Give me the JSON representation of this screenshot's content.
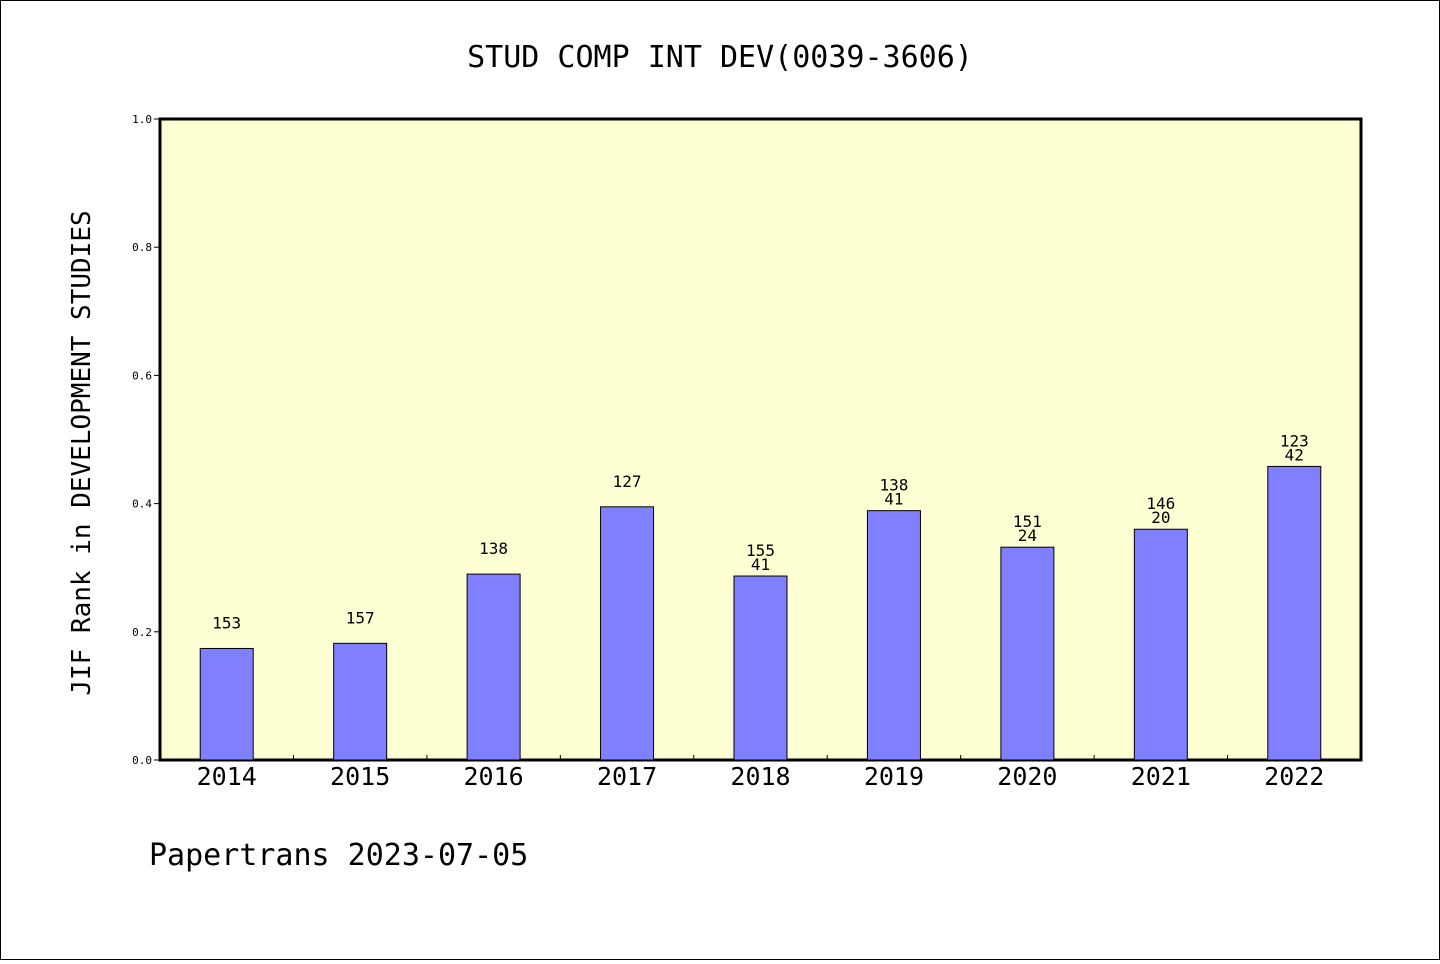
{
  "chart_data": {
    "type": "bar",
    "title": "STUD COMP INT DEV(0039-3606)",
    "xlabel": "",
    "ylabel": "JIF Rank in DEVELOPMENT STUDIES",
    "ylim": [
      0,
      1
    ],
    "yticks": [
      "0.0",
      "0.2",
      "0.4",
      "0.6",
      "0.8",
      "1.0"
    ],
    "grid": false,
    "categories": [
      "2014",
      "2015",
      "2016",
      "2017",
      "2018",
      "2019",
      "2020",
      "2021",
      "2022"
    ],
    "values": [
      0.174,
      0.182,
      0.29,
      0.395,
      0.287,
      0.389,
      0.332,
      0.36,
      0.458
    ],
    "labels_total": [
      "153",
      "157",
      "138",
      "127",
      "155",
      "138",
      "151",
      "146",
      "123"
    ],
    "labels_rank": [
      "",
      "",
      "",
      "",
      "41",
      "41",
      "24",
      "20",
      "42"
    ],
    "colors": {
      "bar": "#8080ff",
      "plot_bg": "#ffffd4"
    }
  },
  "footer": "Papertrans 2023-07-05"
}
